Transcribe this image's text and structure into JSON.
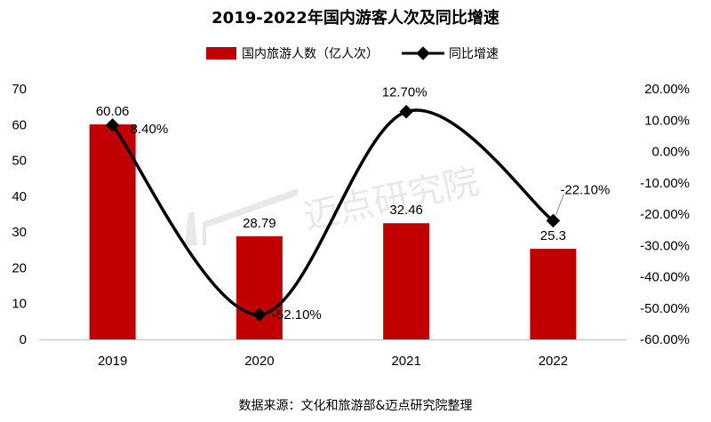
{
  "chart_data": {
    "type": "bar+line",
    "title": "2019-2022年国内游客人次及同比增速",
    "categories": [
      "2019",
      "2020",
      "2021",
      "2022"
    ],
    "series": [
      {
        "name": "国内旅游人数（亿人次）",
        "type": "bar",
        "axis": "left",
        "color": "#c00000",
        "values": [
          60.06,
          28.79,
          32.46,
          25.3
        ],
        "labels": [
          "60.06",
          "28.79",
          "32.46",
          "25.3"
        ]
      },
      {
        "name": "同比增速",
        "type": "line",
        "axis": "right",
        "color": "#000000",
        "values": [
          8.4,
          -52.1,
          12.7,
          -22.1
        ],
        "labels": [
          "8.40%",
          "-52.10%",
          "12.70%",
          "-22.10%"
        ]
      }
    ],
    "y_left": {
      "ylim": [
        0,
        70
      ],
      "ticks": [
        "0",
        "10",
        "20",
        "30",
        "40",
        "50",
        "60",
        "70"
      ]
    },
    "y_right": {
      "ylim": [
        -60,
        20
      ],
      "ticks": [
        "-60.00%",
        "-50.00%",
        "-40.00%",
        "-30.00%",
        "-20.00%",
        "-10.00%",
        "0.00%",
        "10.00%",
        "20.00%"
      ]
    },
    "legend_position": "top-center",
    "grid": false
  },
  "source": "数据来源：文化和旅游部&迈点研究院整理",
  "watermark": "迈点研究院"
}
